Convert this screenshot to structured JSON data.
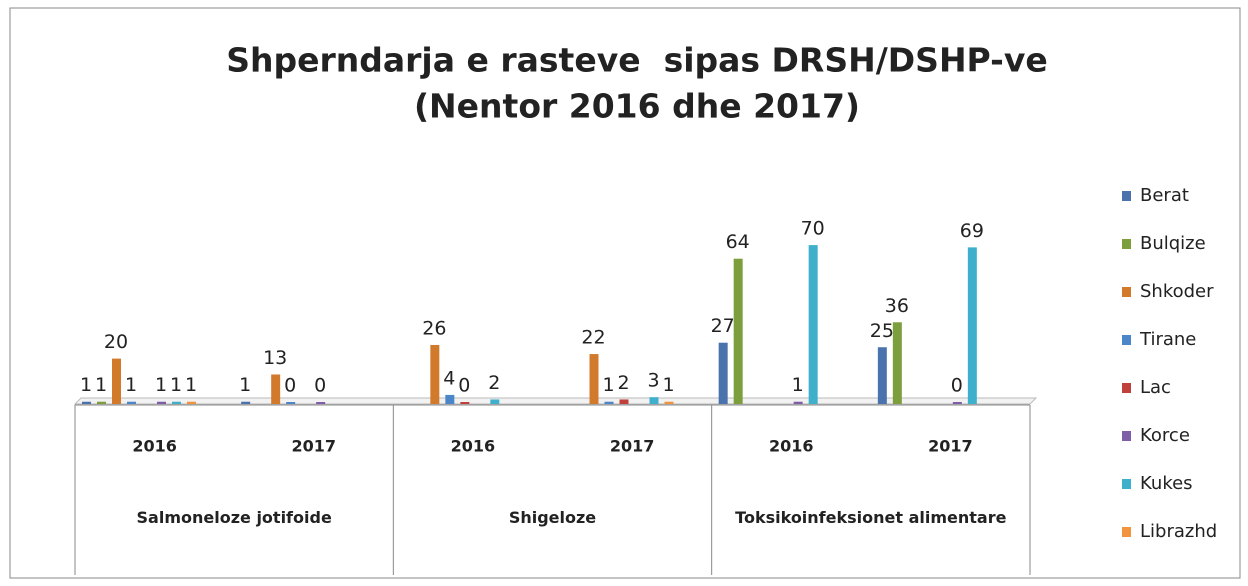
{
  "chart_data": {
    "type": "bar",
    "title": "Shperndarja e rasteve  sipas DRSH/DSHP-ve",
    "subtitle": "(Nentor 2016 dhe 2017)",
    "groups": [
      {
        "name": "Salmoneloze jotifoide",
        "categories": [
          "2016",
          "2017"
        ]
      },
      {
        "name": "Shigeloze",
        "categories": [
          "2016",
          "2017"
        ]
      },
      {
        "name": "Toksikoinfeksionet alimentare",
        "categories": [
          "2016",
          "2017"
        ]
      }
    ],
    "legend": "right",
    "series": [
      {
        "name": "Berat",
        "color": "#4a72ad",
        "values": [
          1,
          1,
          null,
          null,
          27,
          25
        ]
      },
      {
        "name": "Bulqize",
        "color": "#7c9e3c",
        "values": [
          1,
          null,
          null,
          null,
          64,
          36
        ]
      },
      {
        "name": "Shkoder",
        "color": "#d27a2c",
        "values": [
          20,
          13,
          26,
          22,
          null,
          null
        ]
      },
      {
        "name": "Tirane",
        "color": "#4a86c8",
        "values": [
          1,
          0,
          4,
          1,
          null,
          null
        ]
      },
      {
        "name": "Lac",
        "color": "#c0413c",
        "values": [
          null,
          null,
          0,
          2,
          null,
          null
        ]
      },
      {
        "name": "Korce",
        "color": "#7e5ea6",
        "values": [
          1,
          0,
          null,
          null,
          1,
          0
        ]
      },
      {
        "name": "Kukes",
        "color": "#3fb0cc",
        "values": [
          1,
          null,
          2,
          3,
          70,
          69
        ]
      },
      {
        "name": "Librazhd",
        "color": "#f2943e",
        "values": [
          1,
          null,
          null,
          1,
          null,
          null
        ]
      }
    ]
  }
}
